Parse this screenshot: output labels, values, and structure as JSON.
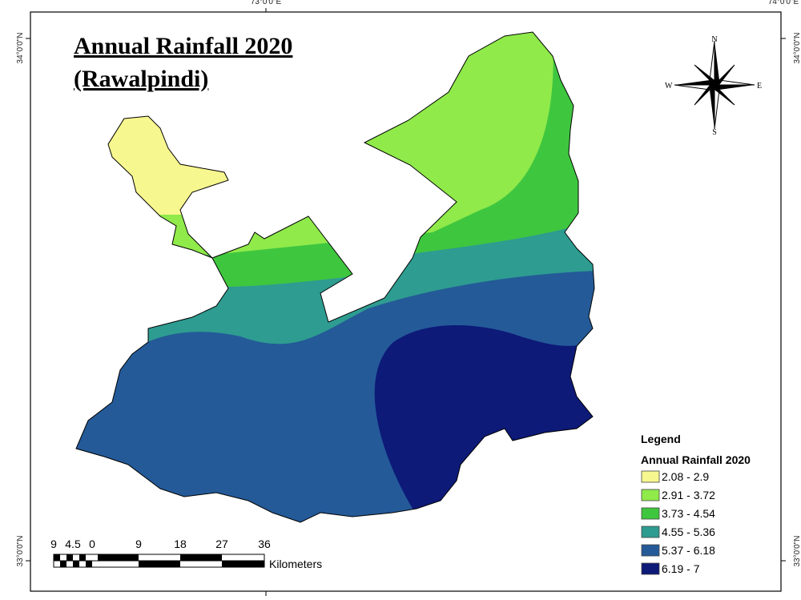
{
  "title": [
    "Annual Rainfall 2020",
    "(Rawalpindi)"
  ],
  "coordinates": {
    "top": [
      "73°0'0\"E",
      "74°0'0\"E"
    ],
    "left": [
      "34°0'0\"N",
      "33°0'0\"N"
    ],
    "right": [
      "34°0'0\"N",
      "33°0'0\"N"
    ]
  },
  "compass": {
    "n": "N",
    "e": "E",
    "s": "S",
    "w": "W"
  },
  "legend": {
    "heading": "Legend",
    "title": "Annual Rainfall 2020",
    "items": [
      {
        "label": "2.08 - 2.9",
        "color": "#f7f78f"
      },
      {
        "label": "2.91 - 3.72",
        "color": "#8fea4a"
      },
      {
        "label": "3.73 - 4.54",
        "color": "#3fc63f"
      },
      {
        "label": "4.55 - 5.36",
        "color": "#2e9c90"
      },
      {
        "label": "5.37 - 6.18",
        "color": "#245a98"
      },
      {
        "label": "6.19 - 7",
        "color": "#0d1a78"
      }
    ]
  },
  "scale_bar": {
    "labels": [
      "9",
      "4.5",
      "0",
      "9",
      "18",
      "27",
      "36"
    ],
    "unit": "Kilometers"
  }
}
